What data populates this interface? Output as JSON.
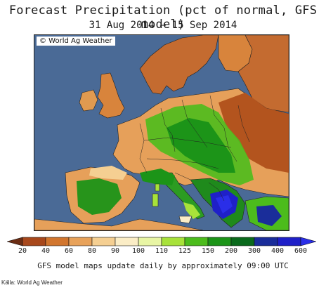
{
  "header": {
    "title": "Forecast Precipitation (pct of normal, GFS model)",
    "subtitle": "31 Aug 2014 – 15 Sep 2014"
  },
  "map": {
    "credit": "© World Ag Weather",
    "region": "Europe",
    "water_color": "#4a6a96"
  },
  "legend": {
    "ticks": [
      "20",
      "40",
      "60",
      "80",
      "90",
      "100",
      "110",
      "125",
      "150",
      "200",
      "300",
      "400",
      "600"
    ],
    "colors": [
      "#6b2d14",
      "#a8481c",
      "#d2762e",
      "#e8a25a",
      "#f5cf92",
      "#fbedc6",
      "#e8f5a4",
      "#a8e23a",
      "#4cbc1c",
      "#1c9418",
      "#0a6a1c",
      "#1a2d9a",
      "#1f20c8",
      "#2a2ee8"
    ]
  },
  "footer": {
    "note": "GFS model maps update daily by approximately 09:00 UTC",
    "source": "Källa: World Ag Weather"
  }
}
